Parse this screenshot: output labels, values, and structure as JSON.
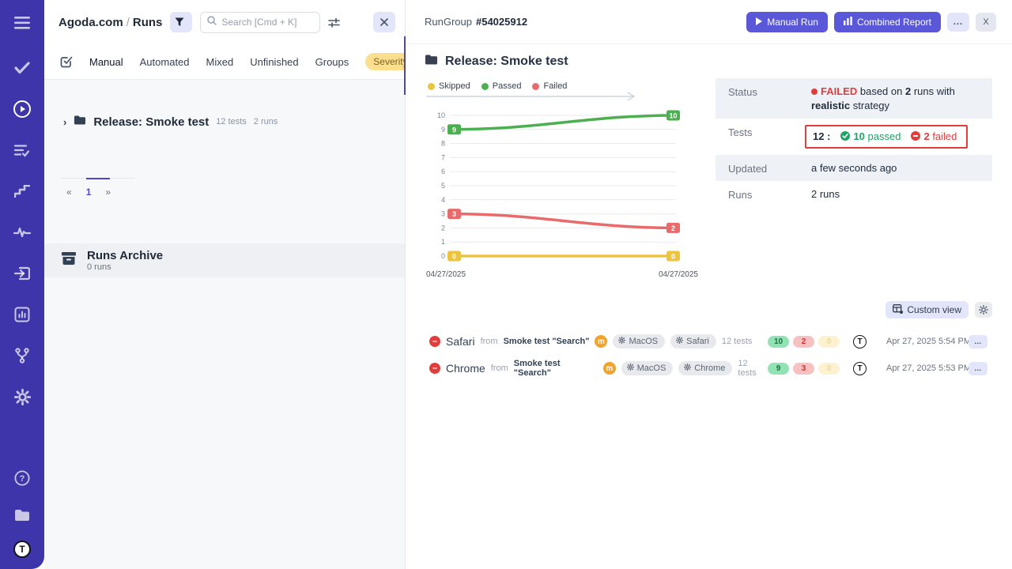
{
  "left_panel": {
    "breadcrumb": {
      "project": "Agoda.com",
      "separator": "/",
      "page": "Runs"
    },
    "search": {
      "placeholder": "Search [Cmd + K]"
    },
    "tabs": [
      "Manual",
      "Automated",
      "Mixed",
      "Unfinished",
      "Groups"
    ],
    "severity_tab": "Severity",
    "tree": {
      "title": "Release: Smoke test",
      "tests": "12 tests",
      "runs": "2 runs"
    },
    "pagination": {
      "prev": "«",
      "page": "1",
      "next": "»"
    },
    "archive": {
      "title": "Runs Archive",
      "subtitle": "0 runs"
    }
  },
  "header": {
    "run_group_label": "RunGroup",
    "run_group_id": "#54025912",
    "manual_run": "Manual Run",
    "combined_report": "Combined Report",
    "more": "...",
    "close": "X"
  },
  "main": {
    "section_title": "Release: Smoke test",
    "status_table": {
      "status": {
        "label": "Status",
        "failed": "FAILED",
        "based_on": "based on",
        "runs_count": "2",
        "runs_with": "runs with",
        "strategy": "realistic",
        "strategy_word": "strategy"
      },
      "tests": {
        "label": "Tests",
        "total": "12",
        "colon": ":",
        "passed_count": "10",
        "passed_word": "passed",
        "failed_count": "2",
        "failed_word": "failed"
      },
      "updated": {
        "label": "Updated",
        "value": "a few seconds ago"
      },
      "runs": {
        "label": "Runs",
        "value": "2 runs"
      }
    },
    "custom_view": "Custom view",
    "runs": [
      {
        "name": "Safari",
        "from": "from",
        "source": "Smoke test \"Search\"",
        "badge": "m",
        "os": "MacOS",
        "browser": "Safari",
        "tests": "12 tests",
        "passed": "10",
        "failed": "2",
        "skipped": "0",
        "date": "Apr 27, 2025 5:54 PM",
        "menu": "..."
      },
      {
        "name": "Chrome",
        "from": "from",
        "source": "Smoke test \"Search\"",
        "badge": "m",
        "os": "MacOS",
        "browser": "Chrome",
        "tests": "12 tests",
        "passed": "9",
        "failed": "3",
        "skipped": "0",
        "date": "Apr 27, 2025 5:53 PM",
        "menu": "..."
      }
    ]
  },
  "chart_data": {
    "type": "line",
    "x_labels": [
      "04/27/2025",
      "04/27/2025"
    ],
    "series": [
      {
        "name": "Skipped",
        "color": "#ecc440",
        "values": [
          0,
          0
        ]
      },
      {
        "name": "Passed",
        "color": "#4caf50",
        "values": [
          9,
          10
        ]
      },
      {
        "name": "Failed",
        "color": "#e96a6a",
        "values": [
          3,
          2
        ]
      }
    ],
    "ylim": [
      0,
      10
    ],
    "y_ticks": [
      0,
      1,
      2,
      3,
      4,
      5,
      6,
      7,
      8,
      9,
      10
    ],
    "legend_position": "top"
  }
}
